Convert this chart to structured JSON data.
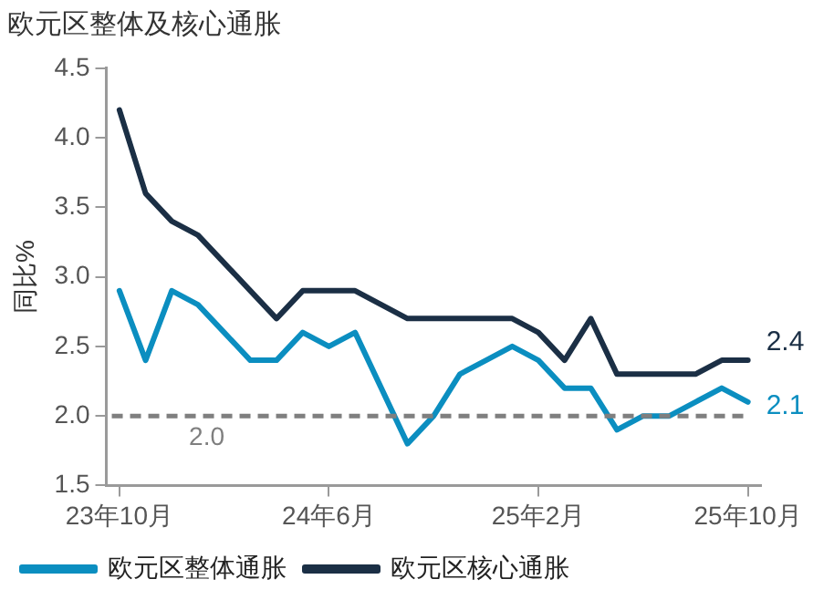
{
  "chart_data": {
    "type": "line",
    "title": "欧元区整体及核心通胀",
    "ylabel": "同比%",
    "categories": [
      "23年10月",
      null,
      null,
      null,
      null,
      null,
      null,
      null,
      "24年6月",
      null,
      null,
      null,
      null,
      null,
      null,
      null,
      "25年2月",
      null,
      null,
      null,
      null,
      null,
      null,
      null,
      "25年10月"
    ],
    "series": [
      {
        "name": "欧元区整体通胀",
        "color": "#0b8ec0",
        "values": [
          2.9,
          2.4,
          2.9,
          2.8,
          2.6,
          2.4,
          2.4,
          2.6,
          2.5,
          2.6,
          2.2,
          1.8,
          2.0,
          2.3,
          2.4,
          2.5,
          2.4,
          2.2,
          2.2,
          1.9,
          2.0,
          2.0,
          2.1,
          2.2,
          2.1
        ],
        "value_labels": [
          null,
          null,
          null,
          null,
          null,
          null,
          null,
          null,
          null,
          null,
          null,
          null,
          null,
          null,
          null,
          null,
          null,
          null,
          null,
          null,
          null,
          null,
          null,
          null,
          "2.1"
        ]
      },
      {
        "name": "欧元区核心通胀",
        "color": "#1b2f45",
        "values": [
          4.2,
          3.6,
          3.4,
          3.3,
          3.1,
          2.9,
          2.7,
          2.9,
          2.9,
          2.9,
          2.8,
          2.7,
          2.7,
          2.7,
          2.7,
          2.7,
          2.6,
          2.4,
          2.7,
          2.3,
          2.3,
          2.3,
          2.3,
          2.4,
          2.4
        ],
        "value_labels": [
          null,
          null,
          null,
          null,
          null,
          null,
          null,
          null,
          null,
          null,
          null,
          null,
          null,
          null,
          null,
          null,
          null,
          null,
          null,
          null,
          null,
          null,
          null,
          null,
          "2.4"
        ]
      }
    ],
    "ylim": [
      1.5,
      4.5
    ],
    "yticks": [
      1.5,
      {
        "value": 2,
        "label": "2.0"
      },
      2.5,
      {
        "value": 3,
        "label": "3.0"
      },
      3.5,
      {
        "value": 4,
        "label": "4.0"
      },
      4.5
    ],
    "ref_lines": [
      {
        "axis": "y",
        "value": 2,
        "label": "2.0",
        "color": "#7f7f7f",
        "line_style": "dashed"
      }
    ],
    "grid": false,
    "legend": "bottom",
    "marker": "none",
    "line_style": "solid"
  }
}
